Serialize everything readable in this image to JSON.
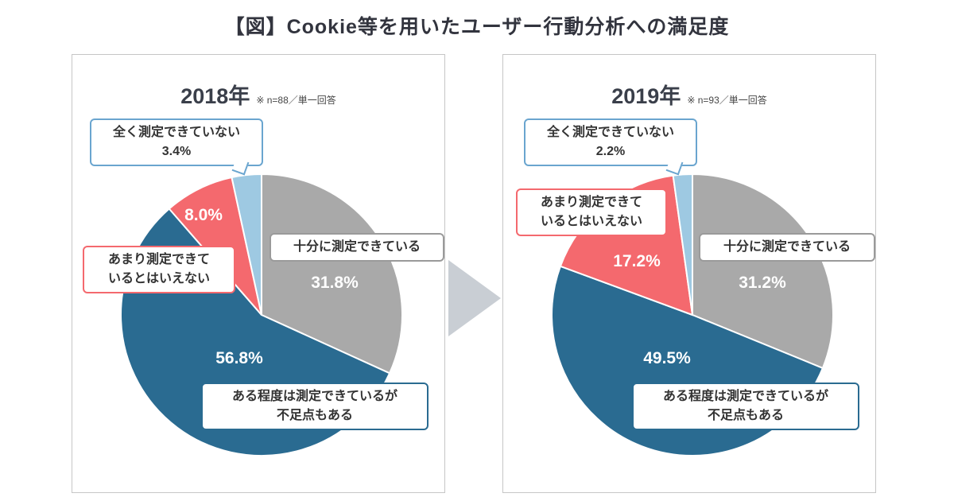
{
  "page": {
    "title": "【図】Cookie等を用いたユーザー行動分析への満足度"
  },
  "colors": {
    "sufficient": "#a9a9a9",
    "partial": "#2a6b91",
    "insufficient": "#f4696e",
    "none": "#9ec9e2",
    "arrow": "#c9ced4"
  },
  "panels": [
    {
      "year_label": "2018年",
      "note": "※ n=88／単一回答",
      "callouts": {
        "none_line1": "全く測定できていない",
        "none_pct": "3.4%",
        "insufficient_line1": "あまり測定できて",
        "insufficient_line2": "いるとはいえない",
        "sufficient_label": "十分に測定できている",
        "partial_line1": "ある程度は測定できているが",
        "partial_line2": "不足点もある"
      },
      "slice_labels": {
        "sufficient_pct": "31.8%",
        "partial_pct": "56.8%",
        "insufficient_pct": "8.0%"
      }
    },
    {
      "year_label": "2019年",
      "note": "※ n=93／単一回答",
      "callouts": {
        "none_line1": "全く測定できていない",
        "none_pct": "2.2%",
        "insufficient_line1": "あまり測定できて",
        "insufficient_line2": "いるとはいえない",
        "sufficient_label": "十分に測定できている",
        "partial_line1": "ある程度は測定できているが",
        "partial_line2": "不足点もある"
      },
      "slice_labels": {
        "sufficient_pct": "31.2%",
        "partial_pct": "49.5%",
        "insufficient_pct": "17.2%"
      }
    }
  ],
  "chart_data": [
    {
      "type": "pie",
      "title": "2018年",
      "note": "※ n=88／単一回答",
      "categories": [
        "十分に測定できている",
        "ある程度は測定できているが不足点もある",
        "あまり測定できているとはいえない",
        "全く測定できていない"
      ],
      "values": [
        31.8,
        56.8,
        8.0,
        3.4
      ],
      "value_labels": [
        "31.8%",
        "56.8%",
        "8.0%",
        "3.4%"
      ],
      "colors": [
        "#a9a9a9",
        "#2a6b91",
        "#f4696e",
        "#9ec9e2"
      ],
      "start_angle": "top",
      "direction": "clockwise"
    },
    {
      "type": "pie",
      "title": "2019年",
      "note": "※ n=93／単一回答",
      "categories": [
        "十分に測定できている",
        "ある程度は測定できているが不足点もある",
        "あまり測定できているとはいえない",
        "全く測定できていない"
      ],
      "values": [
        31.2,
        49.5,
        17.2,
        2.2
      ],
      "value_labels": [
        "31.2%",
        "49.5%",
        "17.2%",
        "2.2%"
      ],
      "colors": [
        "#a9a9a9",
        "#2a6b91",
        "#f4696e",
        "#9ec9e2"
      ],
      "start_angle": "top",
      "direction": "clockwise"
    }
  ]
}
